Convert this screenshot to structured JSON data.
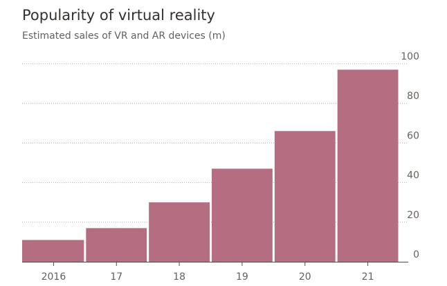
{
  "chart_data": {
    "type": "bar",
    "title": "Popularity of virtual reality",
    "subtitle": "Estimated sales of VR and AR devices (m)",
    "categories": [
      "2016",
      "17",
      "18",
      "19",
      "20",
      "21"
    ],
    "values": [
      11,
      17,
      30,
      47,
      66,
      97
    ],
    "ylim": [
      0,
      100
    ],
    "yticks": [
      0,
      20,
      40,
      60,
      80,
      100
    ],
    "grid": true,
    "y_axis_side": "right",
    "bar_color": "#b56e81",
    "grid_color": "#b0aaa5"
  }
}
